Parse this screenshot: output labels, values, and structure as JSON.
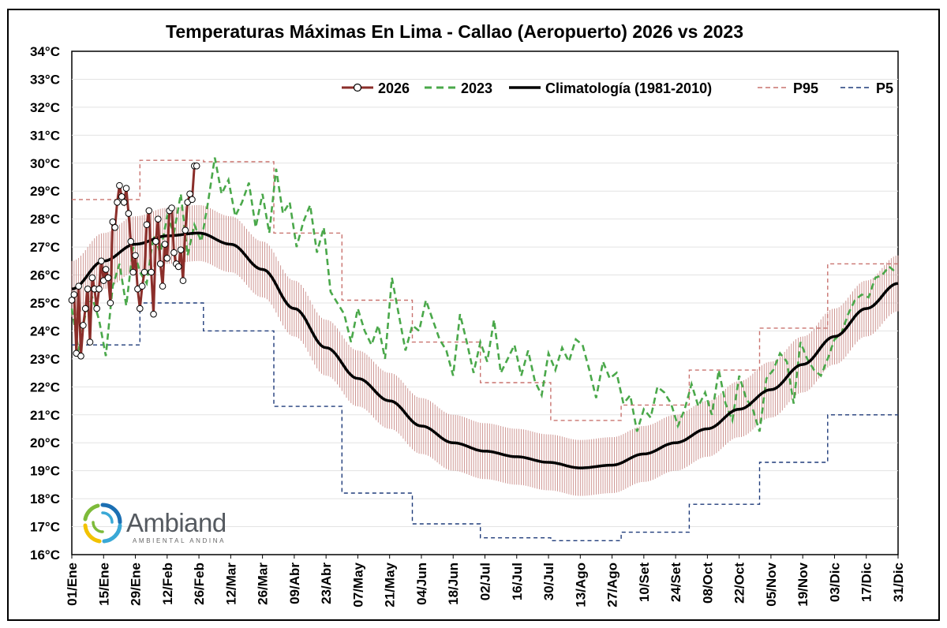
{
  "chart_data": {
    "type": "line",
    "title": "Temperaturas Máximas En Lima - Callao (Aeropuerto) 2026 vs 2023",
    "xlabel": "",
    "ylabel": "",
    "ylim": [
      16,
      34
    ],
    "xlim": [
      1,
      365
    ],
    "y_unit_suffix": "°C",
    "grid": "horizontal",
    "legend_placement": "top",
    "y_ticks": [
      16,
      17,
      18,
      19,
      20,
      21,
      22,
      23,
      24,
      25,
      26,
      27,
      28,
      29,
      30,
      31,
      32,
      33,
      34
    ],
    "x_ticks": [
      {
        "day": 1,
        "label": "01/Ene"
      },
      {
        "day": 15,
        "label": "15/Ene"
      },
      {
        "day": 29,
        "label": "29/Ene"
      },
      {
        "day": 43,
        "label": "12/Feb"
      },
      {
        "day": 57,
        "label": "26/Feb"
      },
      {
        "day": 71,
        "label": "12/Mar"
      },
      {
        "day": 85,
        "label": "26/Mar"
      },
      {
        "day": 99,
        "label": "09/Abr"
      },
      {
        "day": 113,
        "label": "23/Abr"
      },
      {
        "day": 127,
        "label": "07/May"
      },
      {
        "day": 141,
        "label": "21/May"
      },
      {
        "day": 155,
        "label": "04/Jun"
      },
      {
        "day": 169,
        "label": "18/Jun"
      },
      {
        "day": 183,
        "label": "02/Jul"
      },
      {
        "day": 197,
        "label": "16/Jul"
      },
      {
        "day": 211,
        "label": "30/Jul"
      },
      {
        "day": 225,
        "label": "13/Ago"
      },
      {
        "day": 239,
        "label": "27/Ago"
      },
      {
        "day": 253,
        "label": "10/Set"
      },
      {
        "day": 267,
        "label": "24/Set"
      },
      {
        "day": 281,
        "label": "08/Oct"
      },
      {
        "day": 295,
        "label": "22/Oct"
      },
      {
        "day": 309,
        "label": "05/Nov"
      },
      {
        "day": 323,
        "label": "19/Nov"
      },
      {
        "day": 337,
        "label": "03/Dic"
      },
      {
        "day": 351,
        "label": "17/Dic"
      },
      {
        "day": 365,
        "label": "31/Dic"
      }
    ],
    "series": [
      {
        "name": "2026",
        "color": "#8b2e2a",
        "style": "solid-markers",
        "x": [
          1,
          2,
          3,
          4,
          5,
          6,
          7,
          8,
          9,
          10,
          11,
          12,
          13,
          14,
          15,
          16,
          17,
          18,
          19,
          20,
          21,
          22,
          23,
          24,
          25,
          26,
          27,
          28,
          29,
          30,
          31,
          32,
          33,
          34,
          35,
          36,
          37,
          38,
          39,
          40,
          41,
          42,
          43,
          44,
          45,
          46,
          47,
          48,
          49,
          50,
          51,
          52,
          53,
          54,
          55,
          56
        ],
        "values": [
          25.1,
          25.3,
          23.2,
          25.6,
          23.1,
          24.2,
          24.8,
          25.5,
          23.6,
          25.9,
          25.5,
          24.8,
          25.5,
          26.5,
          25.8,
          26.2,
          25.9,
          25.0,
          27.9,
          27.7,
          28.6,
          29.2,
          28.8,
          28.6,
          29.1,
          28.2,
          27.2,
          26.1,
          26.7,
          25.5,
          24.8,
          25.6,
          26.1,
          27.8,
          28.3,
          26.1,
          24.6,
          27.2,
          28.0,
          26.4,
          25.6,
          27.1,
          26.6,
          28.3,
          28.4,
          26.8,
          26.4,
          26.3,
          26.9,
          25.8,
          27.6,
          28.6,
          28.9,
          28.7,
          29.9,
          29.9
        ],
        "note_marker": "circle"
      },
      {
        "name": "2023",
        "color": "#4aa84a",
        "style": "dashed",
        "x": [
          1,
          4,
          7,
          10,
          13,
          16,
          19,
          22,
          25,
          28,
          31,
          34,
          37,
          40,
          43,
          46,
          49,
          52,
          55,
          58,
          61,
          64,
          67,
          70,
          73,
          76,
          79,
          82,
          85,
          88,
          91,
          94,
          97,
          100,
          103,
          106,
          109,
          112,
          115,
          118,
          121,
          124,
          127,
          130,
          133,
          136,
          139,
          142,
          145,
          148,
          151,
          154,
          157,
          160,
          163,
          166,
          169,
          172,
          175,
          178,
          181,
          184,
          187,
          190,
          193,
          196,
          199,
          202,
          205,
          208,
          211,
          214,
          217,
          220,
          223,
          226,
          229,
          232,
          235,
          238,
          241,
          244,
          247,
          250,
          253,
          256,
          259,
          262,
          265,
          268,
          271,
          274,
          277,
          280,
          283,
          286,
          289,
          292,
          295,
          298,
          301,
          304,
          307,
          310,
          313,
          316,
          319,
          322,
          325,
          328,
          331,
          334,
          337,
          340,
          343,
          346,
          349,
          352,
          355,
          358,
          361,
          364
        ],
        "values": [
          24.8,
          23.3,
          24.6,
          25.2,
          24.4,
          23.1,
          25.6,
          26.4,
          24.9,
          27.0,
          26.1,
          25.7,
          27.4,
          26.8,
          28.1,
          27.5,
          28.9,
          26.7,
          27.8,
          27.2,
          28.6,
          30.2,
          28.9,
          29.4,
          28.1,
          28.6,
          29.3,
          27.7,
          28.9,
          27.5,
          29.8,
          28.2,
          28.6,
          27.0,
          27.9,
          28.5,
          26.8,
          27.7,
          25.4,
          25.0,
          24.6,
          23.6,
          24.8,
          24.0,
          23.5,
          24.2,
          23.0,
          25.9,
          24.6,
          23.3,
          24.2,
          24.0,
          25.1,
          24.4,
          23.7,
          23.3,
          22.4,
          24.6,
          23.6,
          22.5,
          23.6,
          22.9,
          24.4,
          22.5,
          23.0,
          23.5,
          22.4,
          23.3,
          22.2,
          21.7,
          23.2,
          22.6,
          23.4,
          22.9,
          23.7,
          23.5,
          22.6,
          21.6,
          22.9,
          22.3,
          22.5,
          21.4,
          21.7,
          20.4,
          21.2,
          20.9,
          22.0,
          21.8,
          21.4,
          20.6,
          21.2,
          22.1,
          21.3,
          21.8,
          21.0,
          22.6,
          21.4,
          20.8,
          22.4,
          21.6,
          21.2,
          20.4,
          22.3,
          22.6,
          23.2,
          22.9,
          21.4,
          23.6,
          23.0,
          22.6,
          22.4,
          23.0,
          23.7,
          23.9,
          24.6,
          25.1,
          25.3,
          25.2,
          25.9,
          26.0,
          26.3,
          26.1
        ]
      },
      {
        "name": "Climatología (1981-2010)",
        "color": "#000000",
        "style": "solid-thick",
        "x": [
          1,
          15,
          29,
          43,
          57,
          71,
          85,
          99,
          113,
          127,
          141,
          155,
          169,
          183,
          197,
          211,
          225,
          239,
          253,
          267,
          281,
          295,
          309,
          323,
          337,
          351,
          365
        ],
        "values": [
          25.5,
          26.5,
          27.1,
          27.4,
          27.5,
          27.1,
          26.2,
          24.8,
          23.4,
          22.3,
          21.5,
          20.6,
          20.0,
          19.7,
          19.5,
          19.3,
          19.1,
          19.2,
          19.6,
          20.0,
          20.5,
          21.2,
          21.9,
          22.8,
          23.8,
          24.8,
          25.7
        ]
      },
      {
        "name": "P95",
        "color": "#c9736f",
        "style": "dashed-step",
        "x": [
          1,
          31,
          31,
          59,
          59,
          90,
          90,
          120,
          120,
          151,
          151,
          181,
          181,
          212,
          212,
          243,
          243,
          273,
          273,
          304,
          304,
          334,
          334,
          365
        ],
        "values": [
          28.7,
          28.7,
          30.1,
          30.1,
          30.05,
          30.05,
          27.5,
          27.5,
          25.1,
          25.1,
          23.6,
          23.6,
          22.15,
          22.15,
          20.8,
          20.8,
          21.35,
          21.35,
          22.6,
          22.6,
          24.1,
          24.1,
          26.4,
          26.4
        ]
      },
      {
        "name": "P5",
        "color": "#1f3b7a",
        "style": "dashed-step",
        "x": [
          1,
          31,
          31,
          59,
          59,
          90,
          90,
          120,
          120,
          151,
          151,
          181,
          181,
          212,
          212,
          243,
          243,
          273,
          273,
          304,
          304,
          334,
          334,
          365
        ],
        "values": [
          23.5,
          23.5,
          25.0,
          25.0,
          24.0,
          24.0,
          21.3,
          21.3,
          18.2,
          18.2,
          17.1,
          17.1,
          16.6,
          16.6,
          16.5,
          16.5,
          16.8,
          16.8,
          17.8,
          17.8,
          19.3,
          19.3,
          21.0,
          21.0
        ]
      }
    ],
    "band": {
      "name": "",
      "color": "#c98a86",
      "half_width": 1.0
    }
  },
  "logo": {
    "name": "Ambiand",
    "tagline": "AMBIENTAL ANDINA",
    "colors": [
      "#1b6fb3",
      "#39a8d6",
      "#f2c200",
      "#7dbb3a"
    ]
  }
}
